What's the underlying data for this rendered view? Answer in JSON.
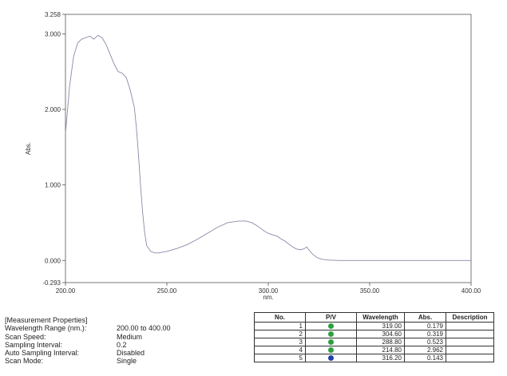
{
  "chart_data": {
    "type": "line",
    "xlabel": "nm.",
    "ylabel": "Abs.",
    "xlim": [
      200,
      400
    ],
    "ylim": [
      -0.293,
      3.258
    ],
    "x_ticks": [
      "200.00",
      "250.00",
      "300.00",
      "350.00",
      "400.00"
    ],
    "y_ticks": [
      {
        "value": 3.258,
        "label": "3.258"
      },
      {
        "value": 3.0,
        "label": "3.000"
      },
      {
        "value": 2.0,
        "label": "2.000"
      },
      {
        "value": 1.0,
        "label": "1.000"
      },
      {
        "value": 0.0,
        "label": "0.000"
      },
      {
        "value": -0.293,
        "label": "-0.293"
      }
    ],
    "grid": false,
    "line_color": "#8a8aa8",
    "series": [
      {
        "x": [
          200,
          202,
          204,
          206,
          208,
          210,
          212,
          214,
          216,
          218,
          220,
          222,
          224,
          226,
          228,
          230,
          232,
          234,
          235,
          236,
          237,
          238,
          239,
          240,
          242,
          244,
          246,
          248,
          250,
          255,
          260,
          265,
          270,
          275,
          280,
          285,
          288.8,
          292,
          295,
          298,
          300,
          302,
          304.6,
          306,
          308,
          310,
          312,
          314,
          316.2,
          318,
          319,
          320,
          322,
          324,
          326,
          328,
          330,
          335,
          340,
          350,
          360,
          370,
          380,
          390,
          400
        ],
        "y": [
          1.68,
          2.3,
          2.7,
          2.88,
          2.93,
          2.95,
          2.97,
          2.93,
          2.98,
          2.95,
          2.86,
          2.73,
          2.6,
          2.5,
          2.48,
          2.42,
          2.25,
          2.02,
          1.75,
          1.4,
          1.0,
          0.65,
          0.38,
          0.2,
          0.12,
          0.1,
          0.1,
          0.11,
          0.12,
          0.16,
          0.21,
          0.28,
          0.36,
          0.44,
          0.5,
          0.52,
          0.523,
          0.5,
          0.45,
          0.39,
          0.36,
          0.34,
          0.319,
          0.29,
          0.26,
          0.22,
          0.18,
          0.15,
          0.143,
          0.16,
          0.179,
          0.14,
          0.08,
          0.04,
          0.02,
          0.01,
          0.005,
          0.0,
          0.0,
          0.0,
          0.0,
          0.0,
          0.0,
          0.0,
          0.0
        ]
      }
    ]
  },
  "measurement_properties": {
    "heading": "[Measurement Properties]",
    "rows": [
      {
        "label": "Wavelength Range (nm.):",
        "value": "200.00 to 400.00"
      },
      {
        "label": "Scan Speed:",
        "value": "Medium"
      },
      {
        "label": "Sampling Interval:",
        "value": "0.2"
      },
      {
        "label": "Auto Sampling Interval:",
        "value": "Disabled"
      },
      {
        "label": "Scan Mode:",
        "value": "Single"
      }
    ]
  },
  "peak_table": {
    "headers": [
      "No.",
      "P/V",
      "Wavelength",
      "Abs.",
      "Description"
    ],
    "rows": [
      {
        "no": "1",
        "pv": "P",
        "pv_icon": "peak-icon",
        "pv_color": "#2e9e3e",
        "wavelength": "319.00",
        "abs": "0.179",
        "description": ""
      },
      {
        "no": "2",
        "pv": "P",
        "pv_icon": "peak-icon",
        "pv_color": "#2e9e3e",
        "wavelength": "304.60",
        "abs": "0.319",
        "description": ""
      },
      {
        "no": "3",
        "pv": "P",
        "pv_icon": "peak-icon",
        "pv_color": "#2e9e3e",
        "wavelength": "288.80",
        "abs": "0.523",
        "description": ""
      },
      {
        "no": "4",
        "pv": "P",
        "pv_icon": "peak-icon",
        "pv_color": "#2e9e3e",
        "wavelength": "214.80",
        "abs": "2.962",
        "description": ""
      },
      {
        "no": "5",
        "pv": "V",
        "pv_icon": "valley-icon",
        "pv_color": "#1f3fa8",
        "wavelength": "316.20",
        "abs": "0.143",
        "description": ""
      }
    ]
  }
}
